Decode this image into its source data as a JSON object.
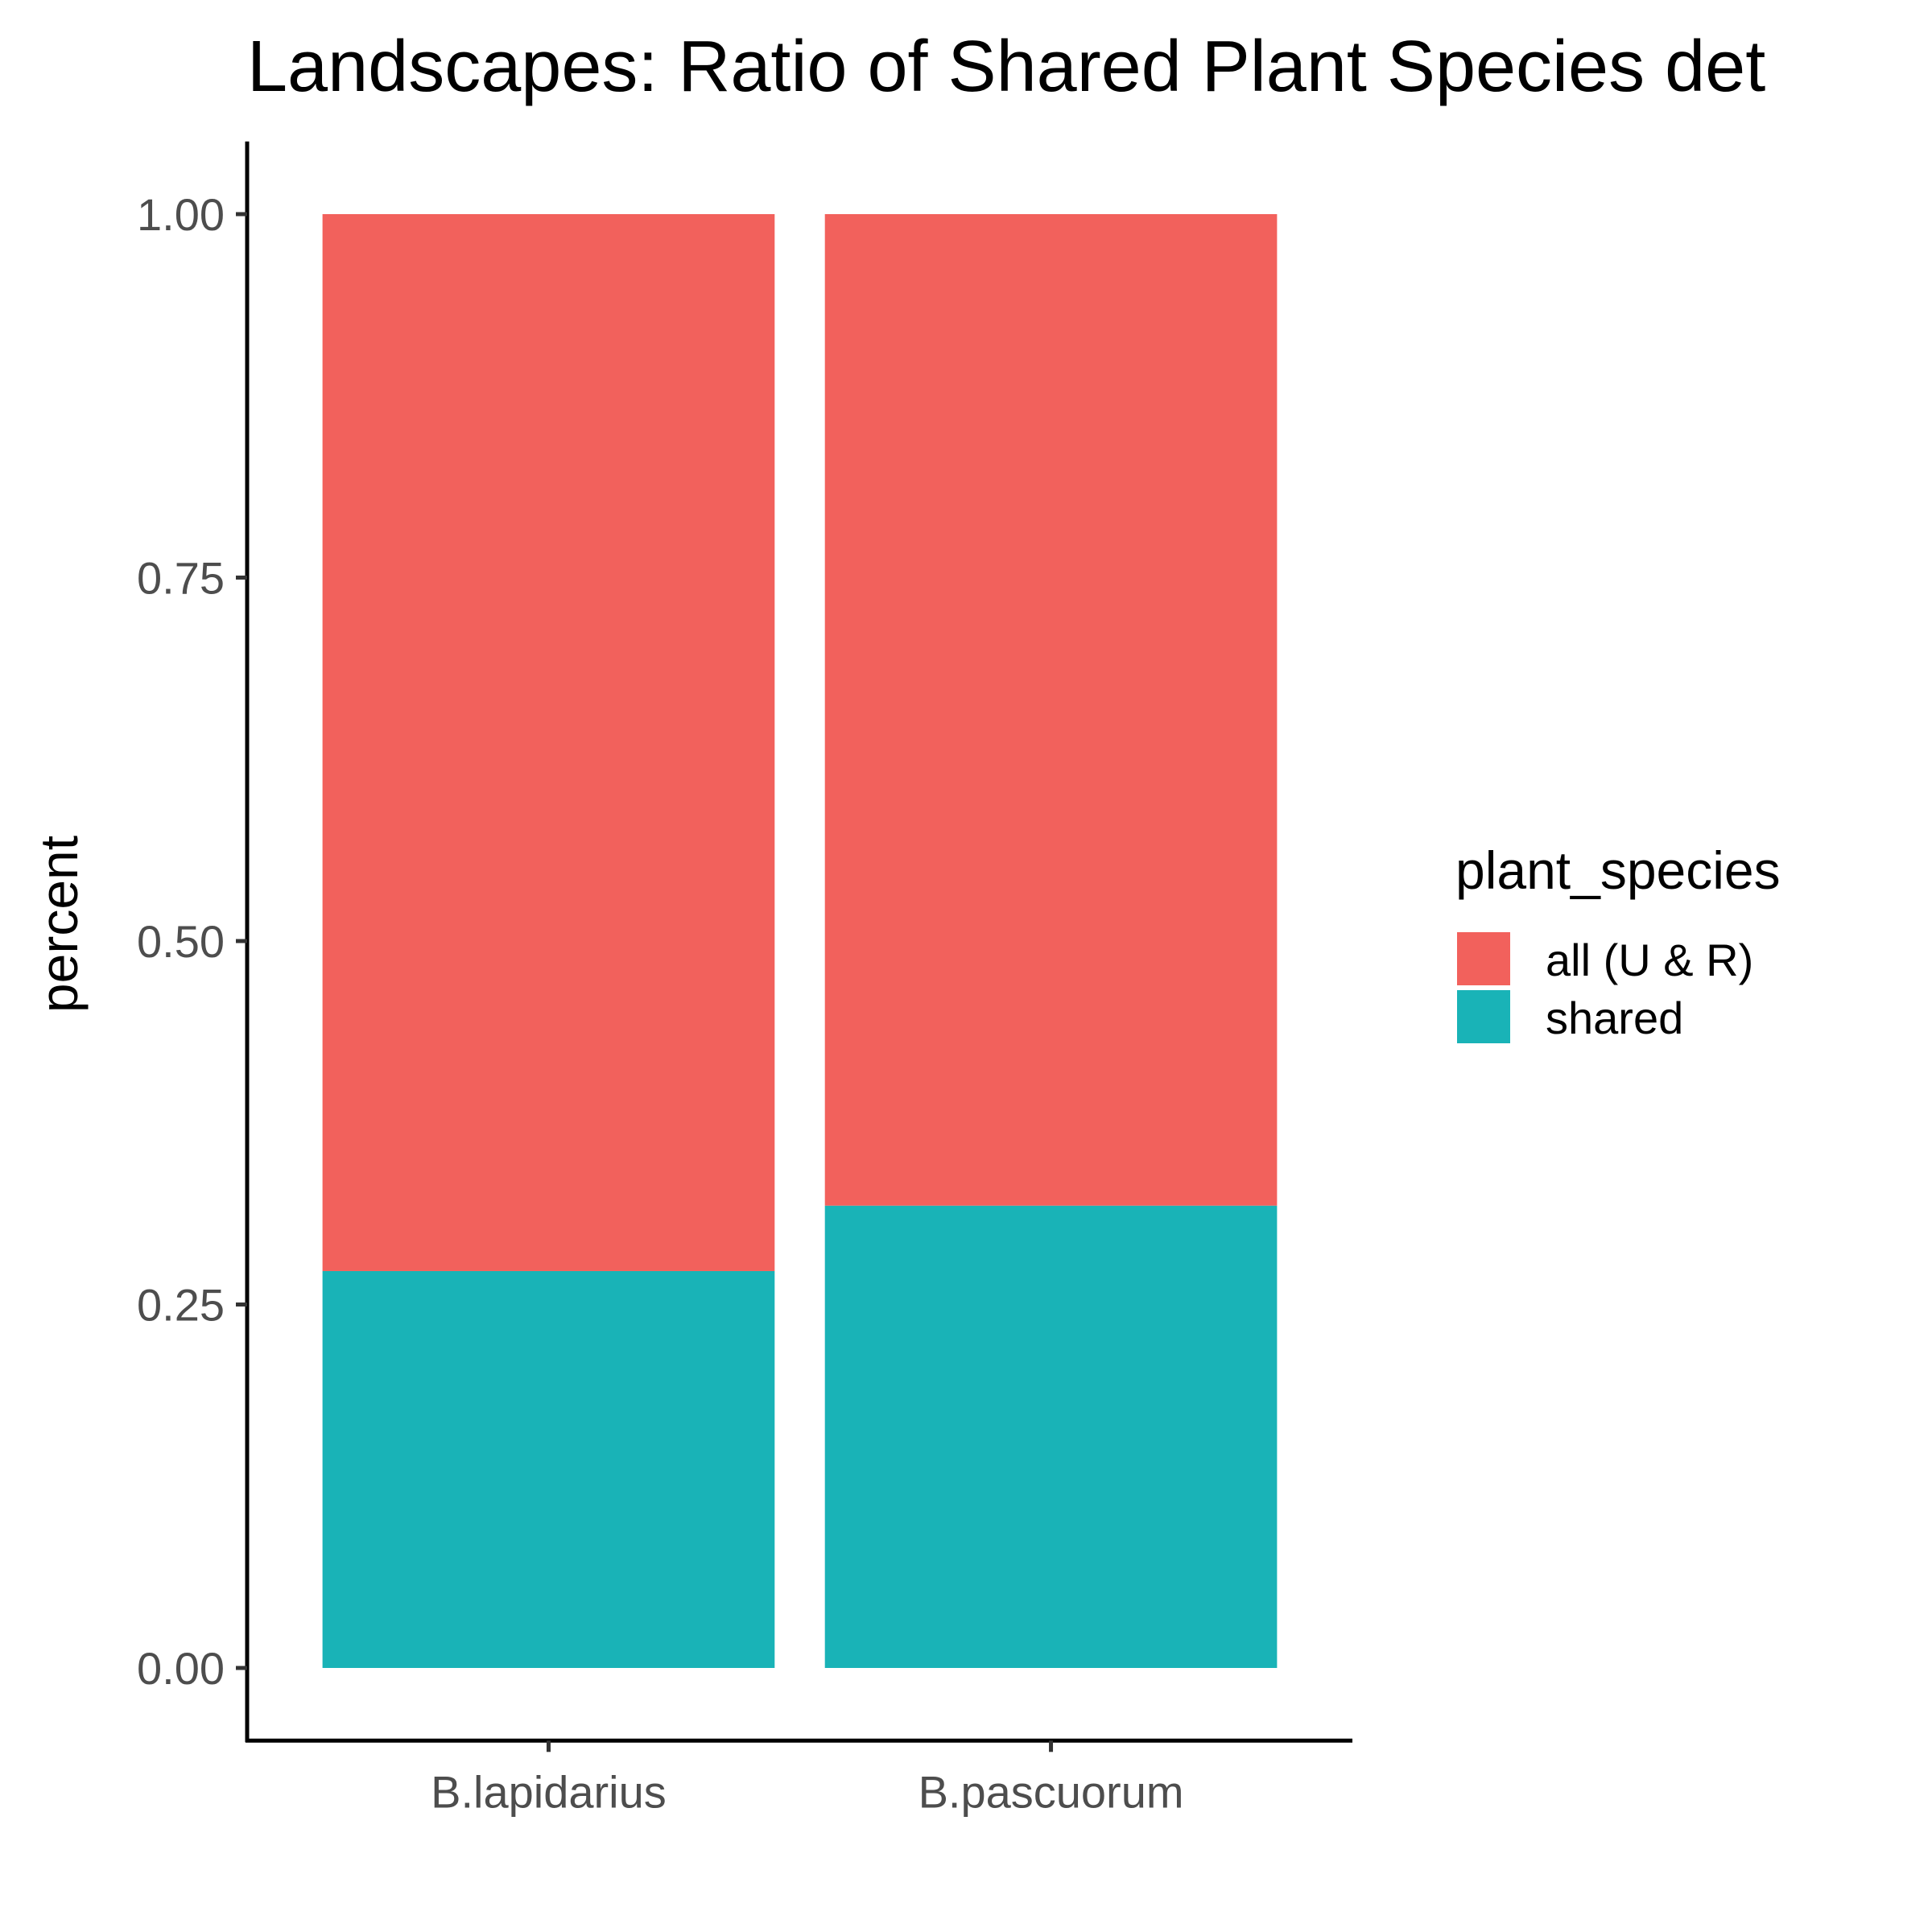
{
  "chart_data": {
    "type": "bar",
    "stacked": true,
    "title": "Landscapes: Ratio of Shared Plant Species det",
    "xlabel": "",
    "ylabel": "percent",
    "categories": [
      "B.lapidarius",
      "B.pascuorum"
    ],
    "series": [
      {
        "name": "shared",
        "values": [
          0.273,
          0.318
        ],
        "color": "#19B3B7"
      },
      {
        "name": "all (U & R)",
        "values": [
          0.727,
          0.682
        ],
        "color": "#F2615C"
      }
    ],
    "ylim": [
      -0.05,
      1.05
    ],
    "yticks": [
      0.0,
      0.25,
      0.5,
      0.75,
      1.0
    ],
    "ytick_labels": [
      "0.00",
      "0.25",
      "0.50",
      "0.75",
      "1.00"
    ],
    "grid": false,
    "legend": {
      "title": "plant_species",
      "position": "right",
      "entries": [
        {
          "label": "all (U & R)",
          "color": "#F2615C"
        },
        {
          "label": "shared",
          "color": "#19B3B7"
        }
      ]
    }
  }
}
